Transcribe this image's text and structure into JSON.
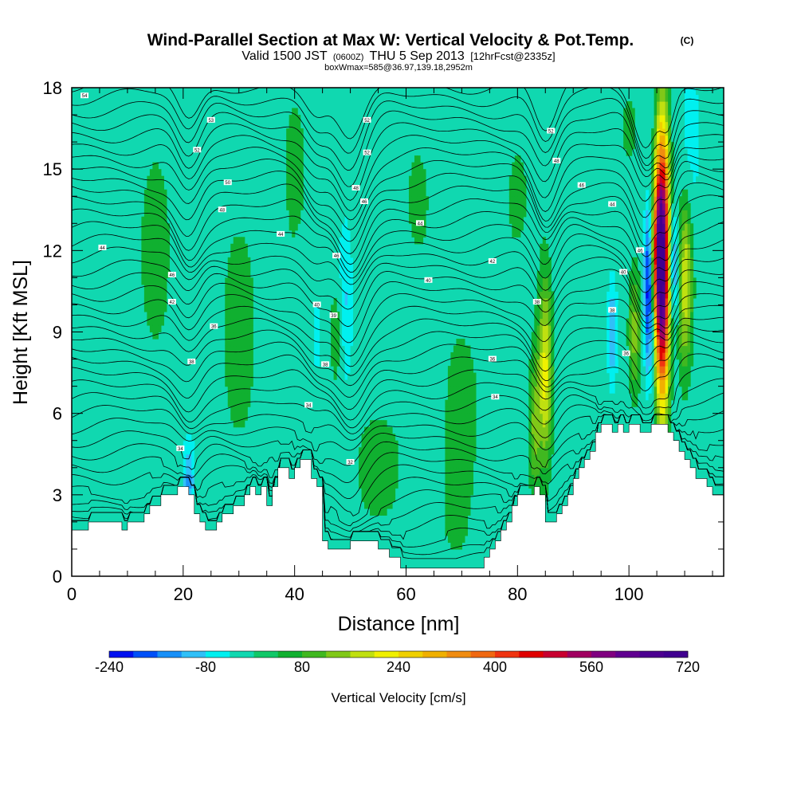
{
  "header": {
    "title": "Wind-Parallel Section at Max W: Vertical Velocity & Pot.Temp.",
    "title_mark": "(C)",
    "valid_prefix": "Valid 1500 JST",
    "valid_utc": "(0600Z)",
    "valid_date": "THU 5 Sep 2013",
    "forecast": "[12hrFcst@2335z]",
    "box_info": "boxWmax=585@36.97,139.18,2952m"
  },
  "colorbar": {
    "label": "Vertical Velocity [cm/s]",
    "tick_labels": [
      "-240",
      "-80",
      "80",
      "240",
      "400",
      "560",
      "720"
    ],
    "tick_values": [
      -240,
      -80,
      80,
      240,
      400,
      560,
      720
    ],
    "min": -240,
    "max": 720,
    "step": 40,
    "colors": [
      "#0010f0",
      "#0050f8",
      "#1890f8",
      "#30c0f8",
      "#00f0f0",
      "#10d8b0",
      "#10c868",
      "#10b030",
      "#40b820",
      "#80c818",
      "#c0e010",
      "#f0f000",
      "#f0d000",
      "#f0b000",
      "#f08c10",
      "#f06810",
      "#f03410",
      "#e00000",
      "#c80030",
      "#a00060",
      "#800080",
      "#600090",
      "#4c0090",
      "#400090"
    ]
  },
  "chart_data": {
    "type": "heatmap",
    "xlabel": "Distance [nm]",
    "ylabel": "Height [Kft MSL]",
    "xlim": [
      0,
      117
    ],
    "ylim": [
      0,
      18
    ],
    "x_tick_values": [
      0,
      20,
      40,
      60,
      80,
      100
    ],
    "x_tick_labels": [
      "0",
      "20",
      "40",
      "60",
      "80",
      "100"
    ],
    "y_tick_values": [
      0,
      3,
      6,
      9,
      12,
      15,
      18
    ],
    "y_tick_labels": [
      "0",
      "3",
      "6",
      "9",
      "12",
      "15",
      "18"
    ],
    "background_color": "#10d8b0",
    "terrain_kft": [
      [
        0,
        1.7
      ],
      [
        2,
        1.7
      ],
      [
        3,
        2.0
      ],
      [
        8,
        2.0
      ],
      [
        9,
        1.7
      ],
      [
        10,
        2.0
      ],
      [
        12,
        2.0
      ],
      [
        13,
        2.3
      ],
      [
        14,
        2.6
      ],
      [
        15,
        2.6
      ],
      [
        16,
        3.0
      ],
      [
        19,
        3.3
      ],
      [
        20,
        3.3
      ],
      [
        21,
        3.0
      ],
      [
        22,
        2.3
      ],
      [
        23,
        2.0
      ],
      [
        24,
        1.7
      ],
      [
        25,
        1.7
      ],
      [
        26,
        2.0
      ],
      [
        27,
        2.3
      ],
      [
        29,
        2.6
      ],
      [
        30,
        2.6
      ],
      [
        31,
        3.0
      ],
      [
        32,
        3.3
      ],
      [
        33,
        3.0
      ],
      [
        34,
        3.3
      ],
      [
        35,
        2.6
      ],
      [
        36,
        3.3
      ],
      [
        37,
        4.0
      ],
      [
        38,
        4.0
      ],
      [
        39,
        3.6
      ],
      [
        40,
        4.0
      ],
      [
        41,
        4.3
      ],
      [
        42,
        4.3
      ],
      [
        43,
        3.6
      ],
      [
        44,
        3.3
      ],
      [
        45,
        1.3
      ],
      [
        46,
        1.0
      ],
      [
        48,
        1.0
      ],
      [
        49,
        1.0
      ],
      [
        50,
        1.3
      ],
      [
        51,
        1.3
      ],
      [
        55,
        1.0
      ],
      [
        56,
        1.0
      ],
      [
        57,
        0.7
      ],
      [
        58,
        0.7
      ],
      [
        59,
        0.3
      ],
      [
        60,
        0.3
      ],
      [
        61,
        0.3
      ],
      [
        62,
        0.3
      ],
      [
        64,
        0.3
      ],
      [
        73,
        0.3
      ],
      [
        74,
        0.7
      ],
      [
        75,
        1.0
      ],
      [
        76,
        1.3
      ],
      [
        77,
        1.7
      ],
      [
        78,
        2.0
      ],
      [
        79,
        2.6
      ],
      [
        80,
        3.0
      ],
      [
        82,
        3.0
      ],
      [
        83,
        3.3
      ],
      [
        84,
        3.0
      ],
      [
        85,
        2.0
      ],
      [
        86,
        2.0
      ],
      [
        87,
        2.3
      ],
      [
        88,
        2.6
      ],
      [
        89,
        3.0
      ],
      [
        90,
        3.6
      ],
      [
        91,
        4.0
      ],
      [
        92,
        4.3
      ],
      [
        93,
        4.6
      ],
      [
        94,
        5.3
      ],
      [
        95,
        5.6
      ],
      [
        96,
        5.6
      ],
      [
        97,
        5.3
      ],
      [
        98,
        5.6
      ],
      [
        99,
        5.3
      ],
      [
        100,
        5.6
      ],
      [
        101,
        5.6
      ],
      [
        102,
        5.3
      ],
      [
        103,
        5.3
      ],
      [
        104,
        5.6
      ],
      [
        106,
        5.6
      ],
      [
        107,
        5.3
      ],
      [
        108,
        5.0
      ],
      [
        109,
        4.6
      ],
      [
        110,
        4.3
      ],
      [
        111,
        4.0
      ],
      [
        112,
        3.6
      ],
      [
        113,
        3.6
      ],
      [
        114,
        3.3
      ],
      [
        115,
        3.0
      ],
      [
        117,
        3.0
      ]
    ],
    "velocity_features": [
      {
        "x": 106,
        "y": 11.5,
        "sx": 0.9,
        "sy": 3.5,
        "w": 720
      },
      {
        "x": 105,
        "y": 12.0,
        "sx": 0.6,
        "sy": 1.8,
        "w": 220
      },
      {
        "x": 103.5,
        "y": 10.5,
        "sx": 0.6,
        "sy": 2.2,
        "w": -230
      },
      {
        "x": 108,
        "y": 11.5,
        "sx": 0.8,
        "sy": 1.5,
        "w": -180
      },
      {
        "x": 110,
        "y": 11.0,
        "sx": 1.0,
        "sy": 2.5,
        "w": 200
      },
      {
        "x": 101,
        "y": 9.0,
        "sx": 0.8,
        "sy": 1.8,
        "w": 140
      },
      {
        "x": 97,
        "y": 9.0,
        "sx": 0.7,
        "sy": 1.5,
        "w": -120
      },
      {
        "x": 85,
        "y": 7.5,
        "sx": 0.9,
        "sy": 2.5,
        "w": 210
      },
      {
        "x": 83,
        "y": 5.5,
        "sx": 0.8,
        "sy": 2.0,
        "w": 120
      },
      {
        "x": 49,
        "y": 10.0,
        "sx": 1.2,
        "sy": 2.5,
        "w": -90
      },
      {
        "x": 47.5,
        "y": 9.0,
        "sx": 0.8,
        "sy": 1.5,
        "w": 110
      },
      {
        "x": 44,
        "y": 9.0,
        "sx": 1.0,
        "sy": 2.0,
        "w": -50
      },
      {
        "x": 21,
        "y": 3.5,
        "sx": 0.8,
        "sy": 1.2,
        "w": -130
      },
      {
        "x": 111,
        "y": 16.0,
        "sx": 1.5,
        "sy": 2.0,
        "w": -80
      },
      {
        "x": 100,
        "y": 16.5,
        "sx": 1.5,
        "sy": 1.5,
        "w": 50
      },
      {
        "x": 30,
        "y": 9.0,
        "sx": 3.0,
        "sy": 4.0,
        "w": 60
      },
      {
        "x": 15,
        "y": 12.0,
        "sx": 3.0,
        "sy": 4.0,
        "w": 55
      },
      {
        "x": 55,
        "y": 4.0,
        "sx": 4.0,
        "sy": 2.0,
        "w": 60
      },
      {
        "x": 70,
        "y": 6.0,
        "sx": 4.0,
        "sy": 4.0,
        "w": 50
      },
      {
        "x": 62,
        "y": 14.0,
        "sx": 3.0,
        "sy": 3.0,
        "w": 45
      },
      {
        "x": 80,
        "y": 14.0,
        "sx": 3.0,
        "sy": 3.0,
        "w": 45
      },
      {
        "x": 40,
        "y": 15.0,
        "sx": 2.0,
        "sy": 3.0,
        "w": 55
      },
      {
        "x": 5,
        "y": 8.0,
        "sx": 3.0,
        "sy": 3.0,
        "w": 35
      },
      {
        "x": 68,
        "y": 1.5,
        "sx": 3.0,
        "sy": 1.5,
        "w": 20
      }
    ],
    "contour_labels": [
      {
        "x": 2.3,
        "y": 17.7,
        "text": "54"
      },
      {
        "x": 25,
        "y": 16.8,
        "text": "53"
      },
      {
        "x": 22.5,
        "y": 15.7,
        "text": "52"
      },
      {
        "x": 28,
        "y": 14.5,
        "text": "50"
      },
      {
        "x": 27,
        "y": 13.5,
        "text": "48"
      },
      {
        "x": 5.5,
        "y": 12.1,
        "text": "44"
      },
      {
        "x": 37.5,
        "y": 12.6,
        "text": "44"
      },
      {
        "x": 18,
        "y": 11.1,
        "text": "46"
      },
      {
        "x": 18,
        "y": 10.1,
        "text": "42"
      },
      {
        "x": 25.5,
        "y": 9.2,
        "text": "36"
      },
      {
        "x": 21.5,
        "y": 7.9,
        "text": "38"
      },
      {
        "x": 19.5,
        "y": 4.7,
        "text": "34"
      },
      {
        "x": 42.5,
        "y": 6.3,
        "text": "34"
      },
      {
        "x": 45.5,
        "y": 7.8,
        "text": "38"
      },
      {
        "x": 47,
        "y": 9.6,
        "text": "39"
      },
      {
        "x": 44,
        "y": 10.0,
        "text": "40"
      },
      {
        "x": 47.5,
        "y": 11.8,
        "text": "46"
      },
      {
        "x": 53,
        "y": 16.8,
        "text": "52"
      },
      {
        "x": 53,
        "y": 15.6,
        "text": "52"
      },
      {
        "x": 51,
        "y": 14.3,
        "text": "48"
      },
      {
        "x": 52.5,
        "y": 13.8,
        "text": "46"
      },
      {
        "x": 62.5,
        "y": 13.0,
        "text": "44"
      },
      {
        "x": 64,
        "y": 10.9,
        "text": "40"
      },
      {
        "x": 75.5,
        "y": 11.6,
        "text": "42"
      },
      {
        "x": 75.5,
        "y": 8.0,
        "text": "36"
      },
      {
        "x": 76,
        "y": 6.6,
        "text": "34"
      },
      {
        "x": 50,
        "y": 4.2,
        "text": "32"
      },
      {
        "x": 86,
        "y": 16.4,
        "text": "52"
      },
      {
        "x": 87,
        "y": 15.3,
        "text": "48"
      },
      {
        "x": 91.5,
        "y": 14.4,
        "text": "46"
      },
      {
        "x": 97,
        "y": 13.7,
        "text": "44"
      },
      {
        "x": 102,
        "y": 12.0,
        "text": "46"
      },
      {
        "x": 99,
        "y": 11.2,
        "text": "40"
      },
      {
        "x": 97,
        "y": 9.8,
        "text": "38"
      },
      {
        "x": 99.5,
        "y": 8.2,
        "text": "36"
      },
      {
        "x": 83.5,
        "y": 10.1,
        "text": "38"
      }
    ]
  }
}
